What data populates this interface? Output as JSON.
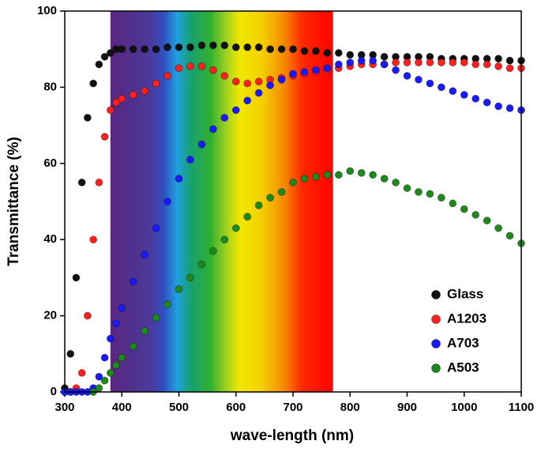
{
  "chart_data": {
    "type": "scatter",
    "x_label": "wave-length (nm)",
    "y_label": "Transmittance (%)",
    "x": [
      300,
      310,
      320,
      330,
      340,
      350,
      360,
      370,
      380,
      390,
      400,
      420,
      440,
      460,
      480,
      500,
      520,
      540,
      560,
      580,
      600,
      620,
      640,
      660,
      680,
      700,
      720,
      740,
      760,
      780,
      800,
      820,
      840,
      860,
      880,
      900,
      920,
      940,
      960,
      980,
      1000,
      1020,
      1040,
      1060,
      1080,
      1100
    ],
    "series": [
      {
        "name": "Glass",
        "color": "#111111",
        "values": [
          1,
          10,
          30,
          55,
          72,
          81,
          86,
          88,
          89,
          90,
          90,
          90,
          90,
          90,
          90.5,
          90.5,
          90.5,
          91,
          91,
          91,
          90.5,
          90.5,
          90.5,
          90,
          90,
          90,
          89.5,
          89.5,
          89,
          89,
          88.5,
          88.5,
          88.5,
          88,
          88,
          88,
          88,
          88,
          87.5,
          87.5,
          87.5,
          87.5,
          87.5,
          87.5,
          87,
          87
        ]
      },
      {
        "name": "A1203",
        "color": "#ff2020",
        "values": [
          0,
          0,
          1,
          5,
          20,
          40,
          55,
          67,
          74,
          76,
          77,
          78,
          79,
          81,
          83,
          85,
          85.5,
          85.5,
          84.5,
          83,
          81.5,
          81,
          81.5,
          82,
          82.5,
          83,
          83.5,
          84,
          84.5,
          85,
          85.5,
          86,
          86,
          86,
          86.5,
          86.5,
          86.5,
          86.5,
          86.5,
          86.5,
          86.5,
          86,
          86,
          85.5,
          85,
          85
        ]
      },
      {
        "name": "A703",
        "color": "#1a1aff",
        "values": [
          0,
          0,
          0,
          0,
          0,
          1,
          4,
          9,
          14,
          18,
          22,
          29,
          36,
          43,
          50,
          56,
          61,
          65,
          69,
          72,
          74,
          76.5,
          78.5,
          80.5,
          82,
          83.5,
          84,
          84.5,
          85,
          86,
          86.5,
          87,
          87,
          86,
          84.5,
          83,
          82,
          81,
          80,
          79,
          78,
          77,
          76,
          75,
          74.5,
          74
        ]
      },
      {
        "name": "A503",
        "color": "#1e8a1e",
        "values": [
          null,
          null,
          null,
          null,
          null,
          0,
          1,
          3,
          5,
          7,
          9,
          12,
          16,
          19.5,
          23,
          27,
          30,
          33.5,
          37,
          40,
          43,
          46,
          49,
          51,
          52.5,
          55,
          56,
          56.5,
          57,
          57,
          58,
          57.5,
          57,
          56,
          55,
          53.5,
          52.5,
          52,
          51,
          49.5,
          48,
          46.5,
          45,
          43,
          41,
          39
        ]
      }
    ],
    "spectrum_band": [
      380,
      770
    ],
    "xlim": [
      300,
      1100
    ],
    "xticks": [
      300,
      400,
      500,
      600,
      700,
      800,
      900,
      1000,
      1100
    ],
    "ylim": [
      0,
      100
    ],
    "yticks": [
      0,
      20,
      40,
      60,
      80,
      100
    ],
    "legend": "lower right"
  }
}
